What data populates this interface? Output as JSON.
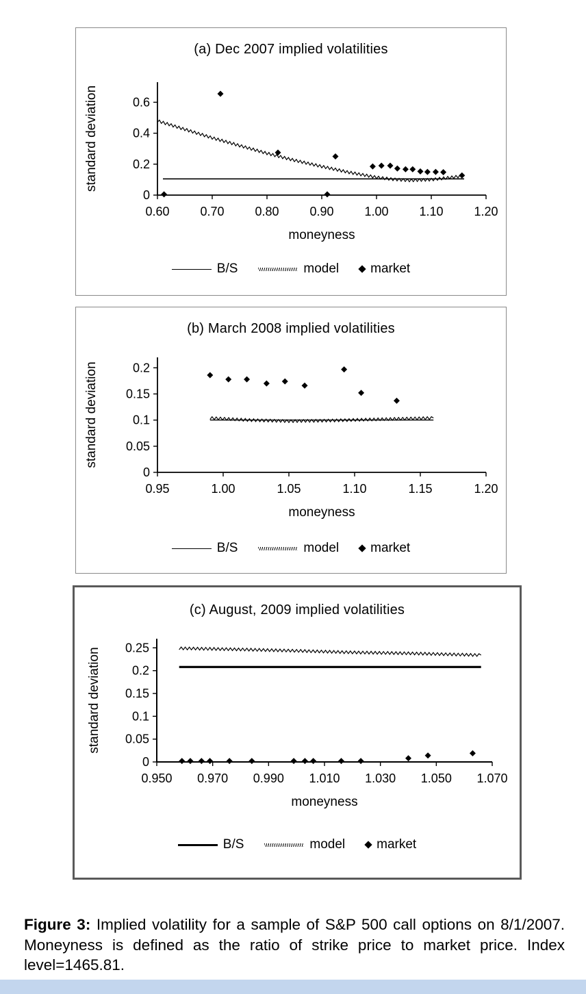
{
  "page": {
    "background": "#ffffff",
    "footer_strip_color": "#c3d6ee"
  },
  "caption": {
    "label": "Figure 3:",
    "text": "Implied volatility for a sample of S&P 500 call options on 8/1/2007. Moneyness is defined as the ratio of strike price to market price. Index level=1465.81."
  },
  "chart_data": [
    {
      "type": "line",
      "title": "(a) Dec 2007 implied volatilities",
      "xlabel": "moneyness",
      "ylabel": "standard deviation",
      "xlim": [
        0.6,
        1.2
      ],
      "ylim": [
        0,
        0.73
      ],
      "grid": false,
      "legend_position": "bottom",
      "xticks": [
        0.6,
        0.7,
        0.8,
        0.9,
        1.0,
        1.1,
        1.2
      ],
      "xtick_labels": [
        "0.60",
        "0.70",
        "0.80",
        "0.90",
        "1.00",
        "1.10",
        "1.20"
      ],
      "yticks": [
        0,
        0.2,
        0.4,
        0.6
      ],
      "ytick_labels": [
        "0",
        "0.2",
        "0.4",
        "0.6"
      ],
      "series": [
        {
          "name": "B/S",
          "style": "solid",
          "line_width": 1.6,
          "points": [
            [
              0.61,
              0.105
            ],
            [
              1.16,
              0.105
            ]
          ]
        },
        {
          "name": "model",
          "style": "hatched",
          "points": [
            [
              0.6,
              0.48
            ],
            [
              0.65,
              0.425
            ],
            [
              0.7,
              0.37
            ],
            [
              0.75,
              0.32
            ],
            [
              0.8,
              0.27
            ],
            [
              0.85,
              0.225
            ],
            [
              0.9,
              0.185
            ],
            [
              0.95,
              0.147
            ],
            [
              1.0,
              0.115
            ],
            [
              1.03,
              0.102
            ],
            [
              1.06,
              0.095
            ],
            [
              1.1,
              0.1
            ],
            [
              1.13,
              0.112
            ],
            [
              1.16,
              0.125
            ]
          ]
        },
        {
          "name": "market",
          "style": "diamond",
          "points": [
            [
              0.612,
              0.005
            ],
            [
              0.715,
              0.655
            ],
            [
              0.82,
              0.275
            ],
            [
              0.91,
              0.005
            ],
            [
              0.925,
              0.25
            ],
            [
              0.993,
              0.185
            ],
            [
              1.009,
              0.19
            ],
            [
              1.025,
              0.19
            ],
            [
              1.038,
              0.172
            ],
            [
              1.053,
              0.167
            ],
            [
              1.066,
              0.167
            ],
            [
              1.08,
              0.153
            ],
            [
              1.093,
              0.15
            ],
            [
              1.108,
              0.15
            ],
            [
              1.122,
              0.148
            ],
            [
              1.156,
              0.127
            ]
          ]
        }
      ]
    },
    {
      "type": "line",
      "title": "(b) March 2008 implied volatilities",
      "xlabel": "moneyness",
      "ylabel": "standard deviation",
      "xlim": [
        0.95,
        1.2
      ],
      "ylim": [
        0,
        0.22
      ],
      "grid": false,
      "legend_position": "bottom",
      "xticks": [
        0.95,
        1.0,
        1.05,
        1.1,
        1.15,
        1.2
      ],
      "xtick_labels": [
        "0.95",
        "1.00",
        "1.05",
        "1.10",
        "1.15",
        "1.20"
      ],
      "yticks": [
        0,
        0.05,
        0.1,
        0.15,
        0.2
      ],
      "ytick_labels": [
        "0",
        "0.05",
        "0.1",
        "0.15",
        "0.2"
      ],
      "series": [
        {
          "name": "B/S",
          "style": "solid",
          "line_width": 1.4,
          "points": [
            [
              0.99,
              0.1
            ],
            [
              1.16,
              0.1
            ]
          ]
        },
        {
          "name": "model",
          "style": "hatched",
          "points": [
            [
              0.99,
              0.104
            ],
            [
              1.02,
              0.1
            ],
            [
              1.05,
              0.098
            ],
            [
              1.08,
              0.099
            ],
            [
              1.11,
              0.101
            ],
            [
              1.16,
              0.104
            ]
          ]
        },
        {
          "name": "market",
          "style": "diamond",
          "points": [
            [
              0.99,
              0.186
            ],
            [
              1.004,
              0.178
            ],
            [
              1.018,
              0.178
            ],
            [
              1.033,
              0.17
            ],
            [
              1.047,
              0.174
            ],
            [
              1.062,
              0.166
            ],
            [
              1.092,
              0.197
            ],
            [
              1.105,
              0.152
            ],
            [
              1.132,
              0.137
            ]
          ]
        }
      ]
    },
    {
      "type": "line",
      "title": "(c) August, 2009 implied volatilities",
      "xlabel": "moneyness",
      "ylabel": "standard deviation",
      "xlim": [
        0.95,
        1.07
      ],
      "ylim": [
        0,
        0.27
      ],
      "grid": false,
      "legend_position": "bottom",
      "xticks": [
        0.95,
        0.97,
        0.99,
        1.01,
        1.03,
        1.05,
        1.07
      ],
      "xtick_labels": [
        "0.950",
        "0.970",
        "0.990",
        "1.010",
        "1.030",
        "1.050",
        "1.070"
      ],
      "yticks": [
        0,
        0.05,
        0.1,
        0.15,
        0.2,
        0.25
      ],
      "ytick_labels": [
        "0",
        "0.05",
        "0.1",
        "0.15",
        "0.2",
        "0.25"
      ],
      "series": [
        {
          "name": "B/S",
          "style": "solid",
          "line_width": 3.2,
          "points": [
            [
              0.958,
              0.208
            ],
            [
              1.066,
              0.208
            ]
          ]
        },
        {
          "name": "model",
          "style": "hatched",
          "points": [
            [
              0.958,
              0.249
            ],
            [
              0.98,
              0.2465
            ],
            [
              1.0,
              0.2435
            ],
            [
              1.02,
              0.24
            ],
            [
              1.04,
              0.238
            ],
            [
              1.066,
              0.234
            ]
          ]
        },
        {
          "name": "market",
          "style": "diamond",
          "points": [
            [
              0.959,
              0.002
            ],
            [
              0.962,
              0.002
            ],
            [
              0.966,
              0.002
            ],
            [
              0.969,
              0.002
            ],
            [
              0.976,
              0.002
            ],
            [
              0.984,
              0.002
            ],
            [
              0.999,
              0.002
            ],
            [
              1.003,
              0.002
            ],
            [
              1.006,
              0.002
            ],
            [
              1.016,
              0.002
            ],
            [
              1.023,
              0.002
            ],
            [
              1.04,
              0.008
            ],
            [
              1.047,
              0.014
            ],
            [
              1.063,
              0.019
            ]
          ]
        }
      ]
    }
  ]
}
